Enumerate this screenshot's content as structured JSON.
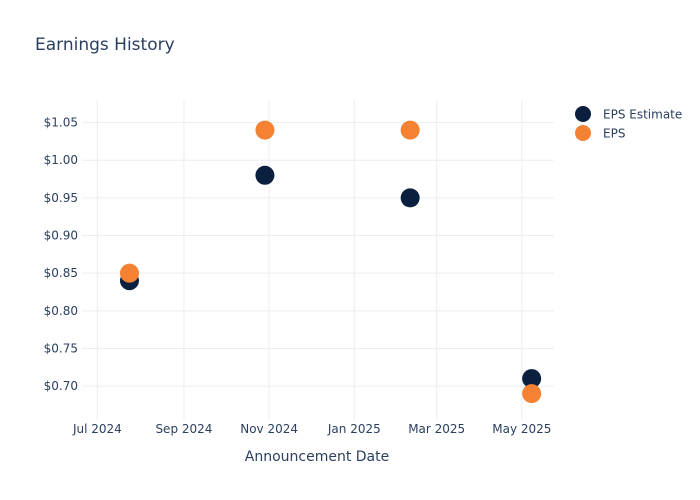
{
  "chart_data": {
    "type": "scatter",
    "title": "Earnings History",
    "xlabel": "Announcement Date",
    "ylabel": "",
    "x_axis_type": "date",
    "xlim": [
      "2024-06-20",
      "2025-05-24"
    ],
    "ylim": [
      0.655,
      1.08
    ],
    "x_ticks": [
      {
        "date": "2024-07-01",
        "label": "Jul 2024"
      },
      {
        "date": "2024-09-01",
        "label": "Sep 2024"
      },
      {
        "date": "2024-11-01",
        "label": "Nov 2024"
      },
      {
        "date": "2025-01-01",
        "label": "Jan 2025"
      },
      {
        "date": "2025-03-01",
        "label": "Mar 2025"
      },
      {
        "date": "2025-05-01",
        "label": "May 2025"
      }
    ],
    "y_ticks": [
      {
        "value": 0.7,
        "label": "$0.70"
      },
      {
        "value": 0.75,
        "label": "$0.75"
      },
      {
        "value": 0.8,
        "label": "$0.80"
      },
      {
        "value": 0.85,
        "label": "$0.85"
      },
      {
        "value": 0.9,
        "label": "$0.90"
      },
      {
        "value": 0.95,
        "label": "$0.95"
      },
      {
        "value": 1.0,
        "label": "$1.00"
      },
      {
        "value": 1.05,
        "label": "$1.05"
      }
    ],
    "grid": true,
    "legend_position": "top-right",
    "series": [
      {
        "name": "EPS Estimate",
        "color": "#0b1f3f",
        "points": [
          {
            "x": "2024-07-24",
            "y": 0.84
          },
          {
            "x": "2024-10-29",
            "y": 0.98
          },
          {
            "x": "2025-02-10",
            "y": 0.95
          },
          {
            "x": "2025-05-08",
            "y": 0.71
          }
        ]
      },
      {
        "name": "EPS",
        "color": "#f58233",
        "points": [
          {
            "x": "2024-07-24",
            "y": 0.85
          },
          {
            "x": "2024-10-29",
            "y": 1.04
          },
          {
            "x": "2025-02-10",
            "y": 1.04
          },
          {
            "x": "2025-05-08",
            "y": 0.69
          }
        ]
      }
    ]
  }
}
